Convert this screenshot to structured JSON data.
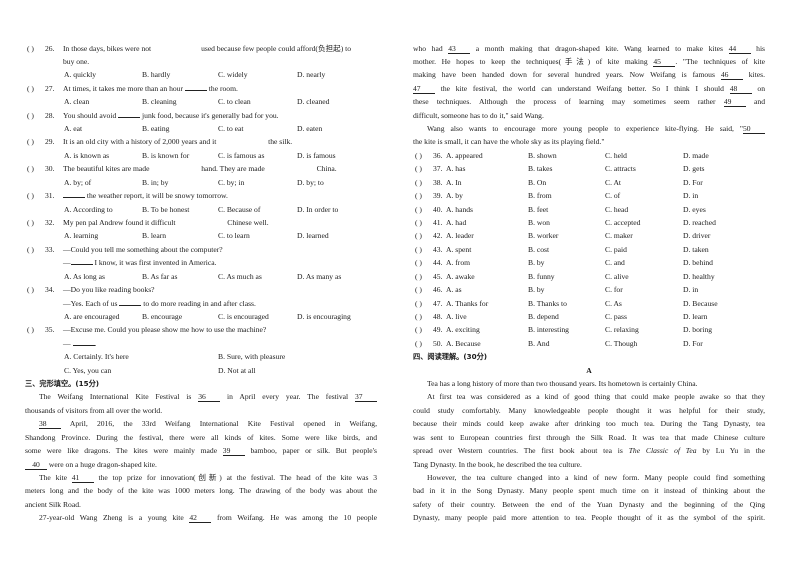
{
  "left_column": {
    "mc_questions": [
      {
        "num": "26.",
        "stem": [
          "In those days, bikes were not ",
          {
            "gap": ""
          },
          "used because few people could afford(负担起) to"
        ],
        "cont": [
          [
            "buy one."
          ]
        ],
        "options": [
          "A. quickly",
          "B. hardly",
          "C. widely",
          "D. nearly"
        ]
      },
      {
        "num": "27.",
        "stem": [
          "At times, it takes me more than an hour ",
          {
            "blank": ""
          },
          " the room."
        ],
        "cont": [],
        "options": [
          "A. clean",
          "B. cleaning",
          "C. to clean",
          "D. cleaned"
        ]
      },
      {
        "num": "28.",
        "stem": [
          "You should avoid ",
          {
            "blank": ""
          },
          " junk food, because it's generally bad for you."
        ],
        "cont": [],
        "options": [
          "A. eat",
          "B. eating",
          "C. to eat",
          "D. eaten"
        ]
      },
      {
        "num": "29.",
        "stem": [
          "It is an old city with a history of 2,000 years and it ",
          {
            "gap": ""
          },
          " the silk."
        ],
        "cont": [],
        "options": [
          "A. is known as",
          "B. is known for",
          "C. is famous as",
          "D. is famous"
        ]
      },
      {
        "num": "30.",
        "stem": [
          "The beautiful kites are made ",
          {
            "gap": ""
          },
          " hand. They are made ",
          {
            "gap": ""
          },
          " China."
        ],
        "cont": [],
        "options": [
          "A. by; of",
          "B. in; by",
          "C. by; in",
          "D. by; to"
        ]
      },
      {
        "num": "31.",
        "stem": [
          {
            "blank": ""
          },
          " the weather report, it will be snowy tomorrow."
        ],
        "cont": [],
        "options": [
          "A. According to",
          "B. To be honest",
          "C. Because of",
          "D. In order to"
        ]
      },
      {
        "num": "32.",
        "stem": [
          "My pen pal Andrew found it difficult ",
          {
            "gap": ""
          },
          " Chinese well."
        ],
        "cont": [],
        "options": [
          "A. learning",
          "B. learn",
          "C. to learn",
          "D. learned"
        ]
      },
      {
        "num": "33.",
        "stem": [
          "—Could you tell me something about the computer?"
        ],
        "cont": [
          [
            "—",
            {
              "blank": ""
            },
            " I know, it was first invented in America."
          ]
        ],
        "options": [
          "A. As long as",
          "B. As far as",
          "C. As much as",
          "D. As many as"
        ]
      },
      {
        "num": "34.",
        "stem": [
          "—Do you like reading books?"
        ],
        "cont": [
          [
            "—Yes. Each of us ",
            {
              "blank": ""
            },
            " to do more reading in and after class."
          ]
        ],
        "options": [
          "A. are encouraged",
          "B. encourage",
          "C. is encouraged",
          "D. is encouraging"
        ]
      },
      {
        "num": "35.",
        "stem": [
          "—Excuse me. Could you please show me how to use the machine?"
        ],
        "cont": [
          [
            "— ",
            {
              "blank": ""
            },
            "."
          ]
        ],
        "options": [
          "A. Certainly. It's here",
          "B. Sure, with pleasure",
          "C. Yes, you can",
          "D. Not at all"
        ],
        "two_column": true
      }
    ],
    "section3_heading": "三、完形填空。(15分)",
    "cloze_lines": [
      {
        "ind": true,
        "j": true,
        "parts": [
          "The Weifang International Kite Festival is ",
          {
            "blank": "36"
          },
          " in April every year. The festival ",
          {
            "blank": "37"
          }
        ]
      },
      {
        "parts": [
          "thousands of visitors from all over the world."
        ]
      },
      {
        "ind": true,
        "j": true,
        "parts": [
          {
            "blank": "38"
          },
          " April, 2016, the 33rd Weifang International Kite Festival opened in Weifang,"
        ]
      },
      {
        "j": true,
        "parts": [
          "Shandong Province. During the festival, there were all kinds of kites. Some were like birds, and"
        ]
      },
      {
        "j": true,
        "parts": [
          "some were like dragons. The kites were mainly made ",
          {
            "blank": "39"
          },
          " bamboo, paper or silk. But people's"
        ]
      },
      {
        "parts": [
          {
            "blank": "40"
          },
          " were on a huge dragon-shaped kite."
        ]
      },
      {
        "ind": true,
        "j": true,
        "parts": [
          "The kite ",
          {
            "blank": "41"
          },
          " the top prize for innovation(创新) at the festival. The head of the kite was 3"
        ]
      },
      {
        "j": true,
        "parts": [
          "meters long and the body of the kite was 1000 meters long. The drawing of the body was about the"
        ]
      },
      {
        "parts": [
          "ancient Silk Road."
        ]
      },
      {
        "ind": true,
        "j": true,
        "parts": [
          "27-year-old Wang Zheng is a young kite ",
          {
            "blank": "42"
          },
          " from Weifang. He was among the 10 people"
        ]
      }
    ]
  },
  "right_column": {
    "cloze_lines": [
      {
        "j": true,
        "parts": [
          "who had ",
          {
            "blank": "43"
          },
          " a month making that dragon-shaped kite. Wang learned to make kites ",
          {
            "blank": "44"
          },
          " his"
        ]
      },
      {
        "j": true,
        "parts": [
          "mother. He hopes to keep the techniques(手法) of kite making ",
          {
            "blank": "45"
          },
          ". \"The techniques of kite"
        ]
      },
      {
        "j": true,
        "parts": [
          "making have been handed down for several hundred years. Now Weifang is famous ",
          {
            "blank": "46"
          },
          " kites."
        ]
      },
      {
        "j": true,
        "parts": [
          {
            "blank": "47"
          },
          " the kite festival, the world can understand Weifang better. So I think I should ",
          {
            "blank": "48"
          },
          " on"
        ]
      },
      {
        "j": true,
        "parts": [
          "these techniques. Although the process of learning may sometimes seem rather ",
          {
            "blank": "49"
          },
          " and"
        ]
      },
      {
        "parts": [
          "difficult, someone has to do it,\" said Wang."
        ]
      },
      {
        "ind": true,
        "j": true,
        "parts": [
          "Wang also wants to encourage more young people to experience kite-flying. He said, \"",
          {
            "blank": "50"
          }
        ]
      },
      {
        "parts": [
          "the kite is small, it can have the whole sky as its playing field.\""
        ]
      }
    ],
    "answer_rows": [
      {
        "num": "36.",
        "options": [
          "A. appeared",
          "B. shown",
          "C. held",
          "D. made"
        ]
      },
      {
        "num": "37.",
        "options": [
          "A. has",
          "B. takes",
          "C. attracts",
          "D. gets"
        ]
      },
      {
        "num": "38.",
        "options": [
          "A. In",
          "B. On",
          "C. At",
          "D. For"
        ]
      },
      {
        "num": "39.",
        "options": [
          "A. by",
          "B. from",
          "C. of",
          "D. in"
        ]
      },
      {
        "num": "40.",
        "options": [
          "A. hands",
          "B. feet",
          "C. head",
          "D. eyes"
        ]
      },
      {
        "num": "41.",
        "options": [
          "A. had",
          "B. won",
          "C. accepted",
          "D. reached"
        ]
      },
      {
        "num": "42.",
        "options": [
          "A. leader",
          "B. worker",
          "C. maker",
          "D. driver"
        ]
      },
      {
        "num": "43.",
        "options": [
          "A. spent",
          "B. cost",
          "C. paid",
          "D. taken"
        ]
      },
      {
        "num": "44.",
        "options": [
          "A. from",
          "B. by",
          "C. and",
          "D. behind"
        ]
      },
      {
        "num": "45.",
        "options": [
          "A. awake",
          "B. funny",
          "C. alive",
          "D. healthy"
        ]
      },
      {
        "num": "46.",
        "options": [
          "A. as",
          "B. by",
          "C. for",
          "D. in"
        ]
      },
      {
        "num": "47.",
        "options": [
          "A. Thanks for",
          "B. Thanks to",
          "C. As",
          "D. Because"
        ]
      },
      {
        "num": "48.",
        "options": [
          "A. live",
          "B. depend",
          "C. pass",
          "D. learn"
        ]
      },
      {
        "num": "49.",
        "options": [
          "A. exciting",
          "B. interesting",
          "C. relaxing",
          "D. boring"
        ]
      },
      {
        "num": "50.",
        "options": [
          "A. Because",
          "B. And",
          "C. Though",
          "D. For"
        ]
      }
    ],
    "section4_heading": "四、阅读理解。(30分)",
    "passage_title": "A",
    "reading_lines": [
      {
        "ind": true,
        "parts": [
          "Tea has a long history of more than two thousand years. Its hometown is certainly China."
        ]
      },
      {
        "ind": true,
        "j": true,
        "parts": [
          "At first tea was considered as a kind of good thing that could make people awake so that they"
        ]
      },
      {
        "j": true,
        "parts": [
          "could study comfortably. Many knowledgeable people thought it was helpful for their study,"
        ]
      },
      {
        "j": true,
        "parts": [
          "because their minds could keep awake after drinking too much tea. During the Tang Dynasty, tea"
        ]
      },
      {
        "j": true,
        "parts": [
          "was sent to European countries first through the Silk Road. It was tea that made Chinese culture"
        ]
      },
      {
        "j": true,
        "parts": [
          "spread over Western countries. The first book about tea is ",
          {
            "i": "The Classic of Tea"
          },
          " by Lu Yu in the"
        ]
      },
      {
        "parts": [
          "Tang Dynasty. In the book, he described the tea culture."
        ]
      },
      {
        "ind": true,
        "j": true,
        "parts": [
          "However, the tea culture changed into a kind of new form. Many people could find something"
        ]
      },
      {
        "j": true,
        "parts": [
          "bad in it in the Song Dynasty. Many people spent much time on it instead of thinking about the"
        ]
      },
      {
        "j": true,
        "parts": [
          "safety of their country. Between the end of the Yuan Dynasty and the beginning of the Qing"
        ]
      },
      {
        "j": true,
        "parts": [
          "Dynasty, many people paid more attention to tea. People thought of it as the symbol of the spirit."
        ]
      }
    ]
  },
  "answer_paren": "(   )"
}
